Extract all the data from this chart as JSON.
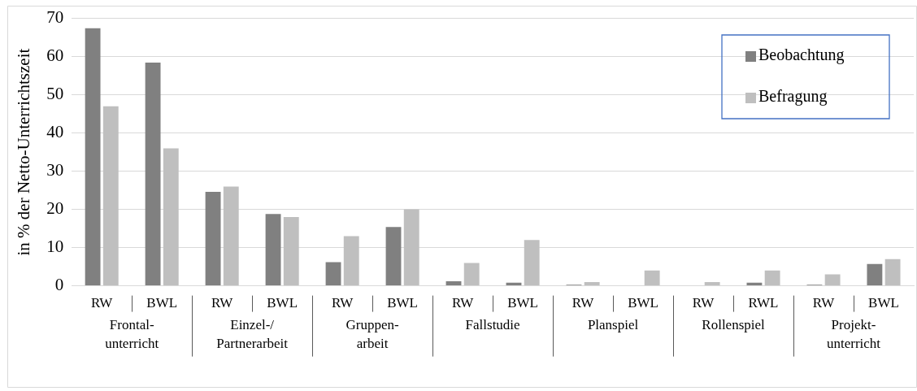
{
  "chart_data": {
    "type": "bar",
    "ylabel": "in % der Netto-Unterrichtszeit",
    "categories": [
      "RW",
      "BWL",
      "RW",
      "BWL",
      "RW",
      "BWL",
      "RW",
      "BWL",
      "RW",
      "BWL",
      "RW",
      "RWL",
      "RW",
      "BWL"
    ],
    "series": [
      {
        "name": "Beobachtung",
        "color": "#808080",
        "values": [
          67.4,
          58.4,
          24.6,
          18.8,
          6.2,
          15.4,
          1.2,
          0.8,
          0.3,
          null,
          0,
          0.8,
          0.3,
          5.7
        ]
      },
      {
        "name": "Befragung",
        "color": "#bfbfbf",
        "values": [
          47,
          36,
          26,
          18,
          13,
          20,
          6,
          12,
          1,
          4,
          1,
          4,
          3,
          7
        ]
      }
    ],
    "ylim": [
      0,
      70
    ],
    "yticks": [
      0,
      10,
      20,
      30,
      40,
      50,
      60,
      70
    ],
    "grid": "y",
    "legend": "top right",
    "annotations": [
      "Frontal-\nunterricht",
      "Einzel-/\nPartnerarbeit",
      "Gruppen-\narbeit",
      "Fallstudie",
      "Planspiel",
      "Rollenspiel",
      "Projekt-\nunterricht"
    ]
  }
}
